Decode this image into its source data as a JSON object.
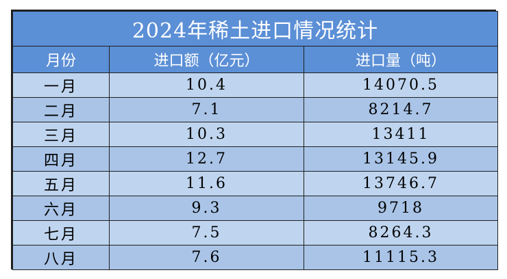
{
  "title": "2024年稀土进口情况统计",
  "columns": [
    "月份",
    "进口额（亿元）",
    "进口量（吨）"
  ],
  "rows": [
    {
      "month": "一月",
      "amount": "10.4",
      "volume": "14070.5"
    },
    {
      "month": "二月",
      "amount": "7.1",
      "volume": "8214.7"
    },
    {
      "month": "三月",
      "amount": "10.3",
      "volume": "13411"
    },
    {
      "month": "四月",
      "amount": "12.7",
      "volume": "13145.9"
    },
    {
      "month": "五月",
      "amount": "11.6",
      "volume": "13746.7"
    },
    {
      "month": "六月",
      "amount": "9.3",
      "volume": "9718"
    },
    {
      "month": "七月",
      "amount": "7.5",
      "volume": "8264.3"
    },
    {
      "month": "八月",
      "amount": "7.6",
      "volume": "11115.3"
    }
  ],
  "colors": {
    "header_bg": "#5b8fd6",
    "row_light": "#bfd5ef",
    "row_dark": "#a9c4e7"
  }
}
